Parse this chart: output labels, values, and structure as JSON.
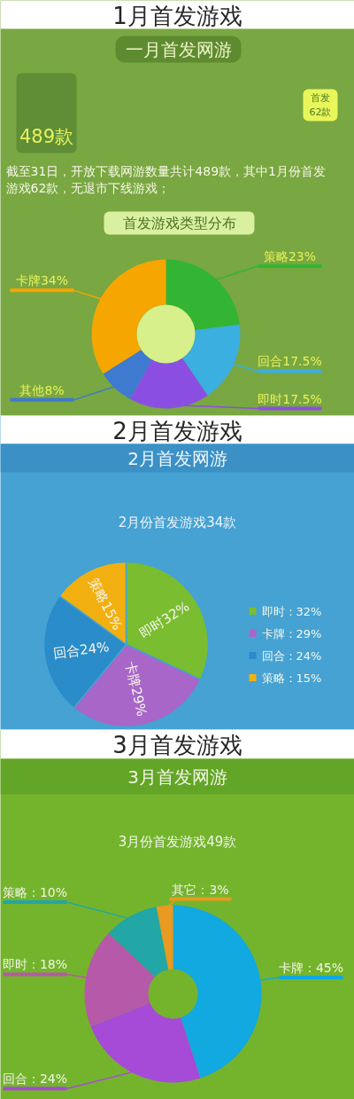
{
  "chart_data": [
    {
      "type": "donut",
      "title": "1月首发游戏",
      "subtitle": "一月首发网游",
      "categories": [
        "策略",
        "回合",
        "即时",
        "其他",
        "卡牌"
      ],
      "values": [
        23,
        17.5,
        17.5,
        8,
        34
      ],
      "colors": [
        "#33b533",
        "#3aafe0",
        "#8a4fe2",
        "#3d7ad0",
        "#f6a600"
      ],
      "value_labels": [
        "23%",
        "17.5%",
        "17.5%",
        "8%",
        "34%"
      ],
      "annotations": [
        "489款",
        "首发62款",
        "截至31日，开放下载网游数量共计489款，其中1月份首发游戏62款，无退市下线游戏；",
        "首发游戏类型分布"
      ]
    },
    {
      "type": "pie",
      "title": "2月首发游戏",
      "subtitle": "2月首发网游",
      "categories": [
        "即时",
        "卡牌",
        "回合",
        "策略"
      ],
      "values": [
        32,
        29,
        24,
        15
      ],
      "colors": [
        "#7abd30",
        "#a866c8",
        "#2a8cc8",
        "#f2b010"
      ],
      "value_labels": [
        "32%",
        "29%",
        "24%",
        "15%"
      ],
      "legend": "right",
      "annotations": [
        "2月份首发游戏34款"
      ]
    },
    {
      "type": "donut",
      "title": "3月首发游戏",
      "subtitle": "3月首发网游",
      "categories": [
        "卡牌",
        "回合",
        "即时",
        "策略",
        "其它"
      ],
      "values": [
        45,
        24,
        18,
        10,
        3
      ],
      "colors": [
        "#12a8e0",
        "#a64ad8",
        "#b659a8",
        "#22a6a6",
        "#e89a22"
      ],
      "value_labels": [
        "45%",
        "24%",
        "18%",
        "10%",
        "3%"
      ],
      "annotations": [
        "3月份首发游戏49款"
      ]
    }
  ]
}
